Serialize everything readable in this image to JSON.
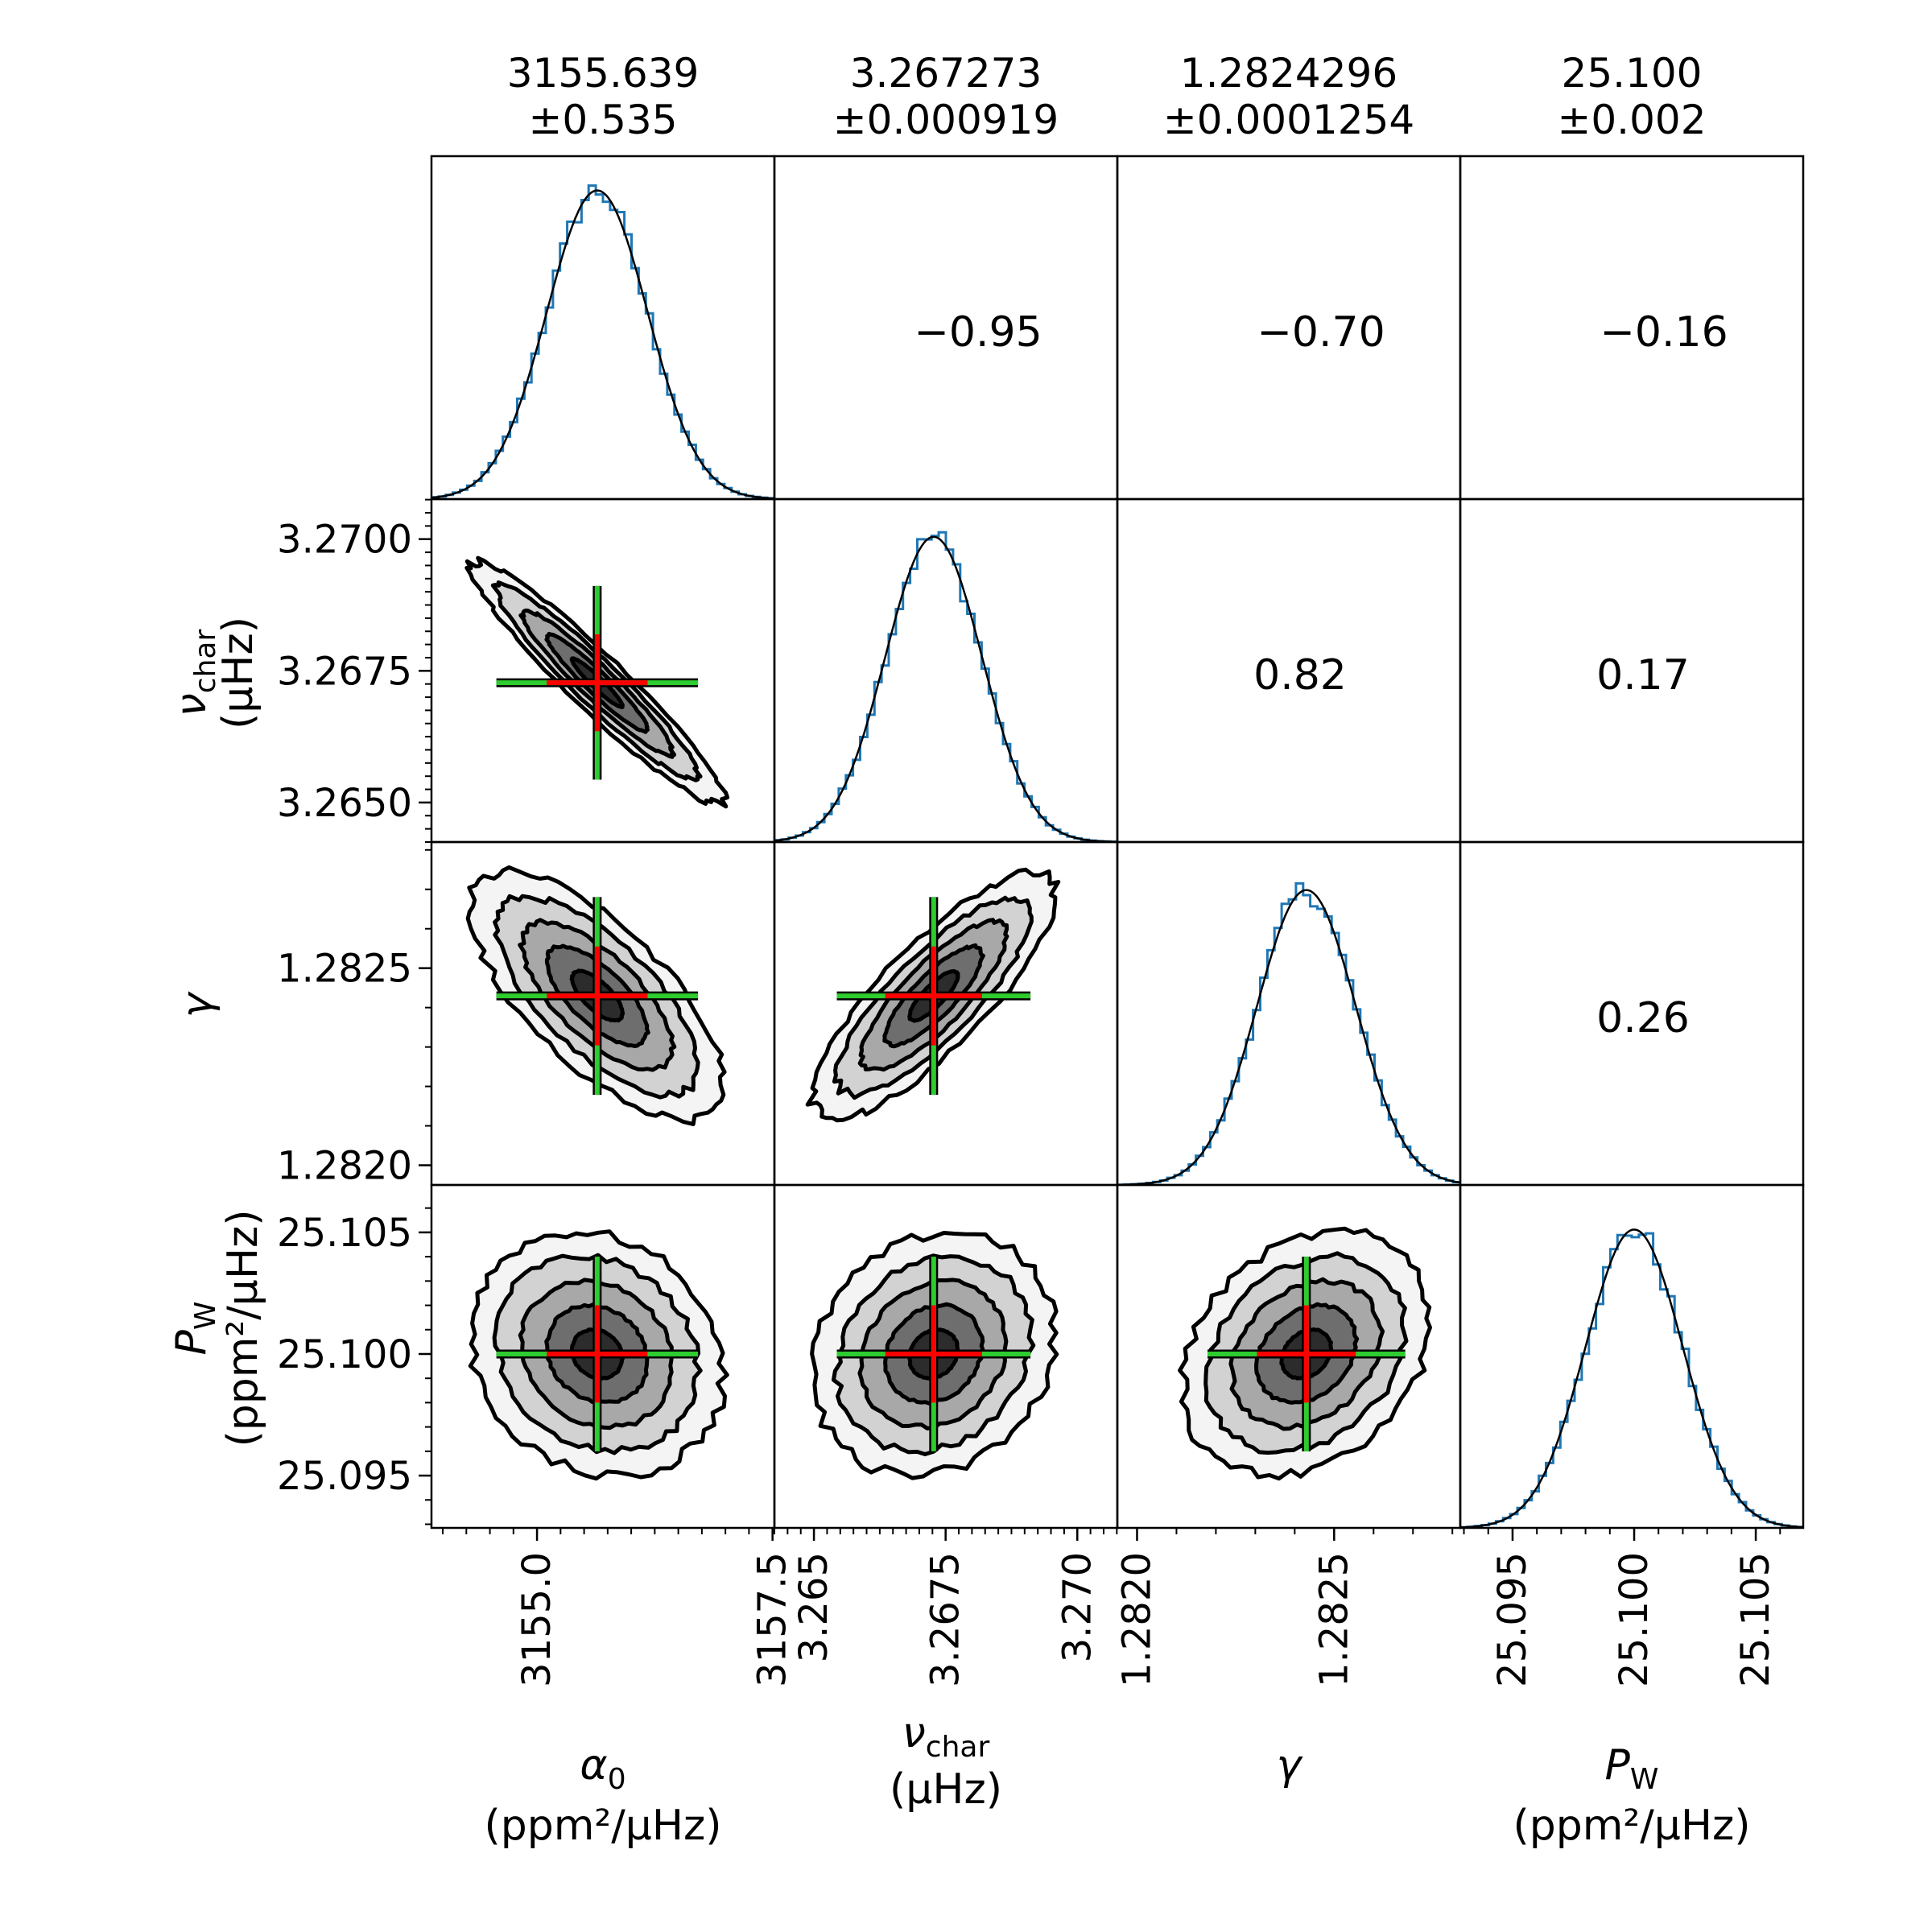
{
  "chart_data": {
    "type": "corner",
    "parameters": [
      {
        "name": "alpha_0",
        "symbol": "α",
        "subscript": "0",
        "unit_line": "(ppm²/μHz)",
        "value": "3155.639",
        "error": "±0.535",
        "mean": 3155.639,
        "sigma": 0.535
      },
      {
        "name": "nu_char",
        "symbol": "ν",
        "subscript": "char",
        "unit_line": "(μHz)",
        "value": "3.267273",
        "error": "±0.000919",
        "mean": 3.267273,
        "sigma": 0.000919
      },
      {
        "name": "gamma",
        "symbol": "γ",
        "subscript": "",
        "unit_line": "",
        "value": "1.2824296",
        "error": "±0.0001254",
        "mean": 1.2824296,
        "sigma": 0.0001254
      },
      {
        "name": "P_W",
        "symbol": "P",
        "subscript": "W",
        "unit_line": "(ppm²/μHz)",
        "value": "25.100",
        "error": "±0.002",
        "mean": 25.1,
        "sigma": 0.002
      }
    ],
    "axis_ranges": [
      [
        3153.88,
        3157.52
      ],
      [
        3.26425,
        3.27076
      ],
      [
        1.28195,
        1.28282
      ],
      [
        25.09285,
        25.10695
      ]
    ],
    "ticks": [
      {
        "values": [
          3155.0,
          3157.5
        ],
        "labels": [
          "3155.0",
          "3157.5"
        ],
        "minor_step": 0.25
      },
      {
        "values": [
          3.265,
          3.2675,
          3.27
        ],
        "labels": [
          "3.265",
          "3.2675",
          "3.270"
        ],
        "y_labels": [
          "3.2650",
          "3.2675",
          "3.2700"
        ],
        "minor_step": 0.00025
      },
      {
        "values": [
          1.282,
          1.2825
        ],
        "labels": [
          "1.2820",
          "1.2825"
        ],
        "minor_step": 0.0001
      },
      {
        "values": [
          25.095,
          25.1,
          25.105
        ],
        "labels": [
          "25.095",
          "25.100",
          "25.105"
        ],
        "minor_step": 0.001
      }
    ],
    "correlations": [
      {
        "row": 0,
        "col": 1,
        "text": "−0.95"
      },
      {
        "row": 0,
        "col": 2,
        "text": "−0.70"
      },
      {
        "row": 0,
        "col": 3,
        "text": "−0.16"
      },
      {
        "row": 1,
        "col": 2,
        "text": "0.82"
      },
      {
        "row": 1,
        "col": 3,
        "text": "0.17"
      },
      {
        "row": 2,
        "col": 3,
        "text": "0.26"
      }
    ],
    "correlation_values": [
      [
        1,
        -0.95,
        -0.7,
        -0.16
      ],
      [
        -0.95,
        1,
        0.82,
        0.17
      ],
      [
        -0.7,
        0.82,
        1,
        0.26
      ],
      [
        -0.16,
        0.17,
        0.26,
        1
      ]
    ],
    "contour_levels_sigma": [
      0.5,
      1.0,
      1.5,
      2.0,
      2.5
    ],
    "marker_sigma_extent": {
      "green": 2.0,
      "red": 1.0
    },
    "colors": {
      "histogram": "#1f77b4",
      "gaussian_fit": "#000000",
      "contour_line": "#000000",
      "contour_fills": [
        "#f4f4f4",
        "#d2d2d2",
        "#a8a8a8",
        "#6e6e6e",
        "#2c2c2c"
      ],
      "marker_outer": "#2ecc2e",
      "marker_inner": "#ff0000",
      "marker_edge": "#000000"
    }
  }
}
